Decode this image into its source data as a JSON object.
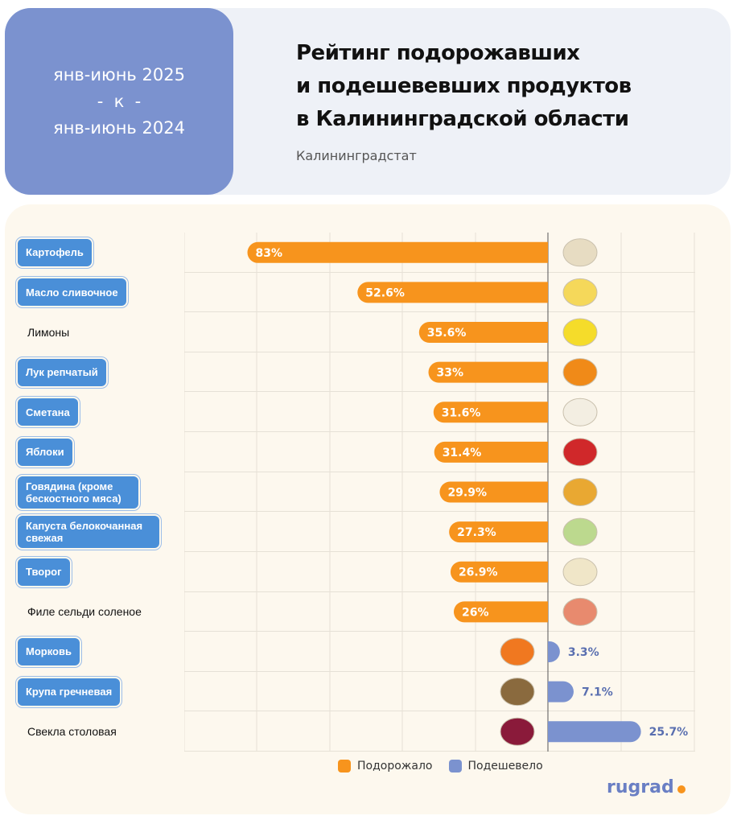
{
  "header": {
    "period_line1": "янв-июнь 2025",
    "period_line2": "-  к  -",
    "period_line3": "янв-июнь 2024",
    "title_line1": "Рейтинг подорожавших",
    "title_line2": "и подешевевших продуктов",
    "title_line3": "в Калининградской области",
    "source": "Калининградстат"
  },
  "chart_data": {
    "type": "bar",
    "orientation": "horizontal-diverging",
    "categories": [
      "Картофель",
      "Масло сливочное",
      "Лимоны",
      "Лук репчатый",
      "Сметана",
      "Яблоки",
      "Говядина (кроме бескостного мяса)",
      "Капуста белокочанная свежая",
      "Творог",
      "Филе сельди соленое",
      "Морковь",
      "Крупа гречневая",
      "Свекла столовая"
    ],
    "highlighted": [
      true,
      true,
      false,
      true,
      true,
      true,
      true,
      true,
      true,
      false,
      true,
      true,
      false
    ],
    "series": [
      {
        "name": "Подорожало",
        "color": "#f7941d",
        "values": [
          83,
          52.6,
          35.6,
          33,
          31.6,
          31.4,
          29.9,
          27.3,
          26.9,
          26,
          null,
          null,
          null
        ]
      },
      {
        "name": "Подешевело",
        "color": "#7b92cf",
        "values": [
          null,
          null,
          null,
          null,
          null,
          null,
          null,
          null,
          null,
          null,
          3.3,
          7.1,
          25.7
        ]
      }
    ],
    "labels": [
      "83%",
      "52.6%",
      "35.6%",
      "33%",
      "31.6%",
      "31.4%",
      "29.9%",
      "27.3%",
      "26.9%",
      "26%",
      "3.3%",
      "7.1%",
      "25.7%"
    ],
    "icons": [
      "potato-icon",
      "butter-icon",
      "lemon-icon",
      "onion-icon",
      "sour-cream-icon",
      "apple-icon",
      "canned-beef-icon",
      "cabbage-icon",
      "cottage-cheese-icon",
      "herring-fillet-icon",
      "carrot-icon",
      "buckwheat-icon",
      "beet-icon"
    ],
    "grid": true,
    "legend_position": "bottom-center"
  },
  "legend": {
    "up_label": "Подорожало",
    "down_label": "Подешевело",
    "up_color": "#f7941d",
    "down_color": "#7b92cf"
  },
  "brand": {
    "logo_text": "rugrad"
  }
}
